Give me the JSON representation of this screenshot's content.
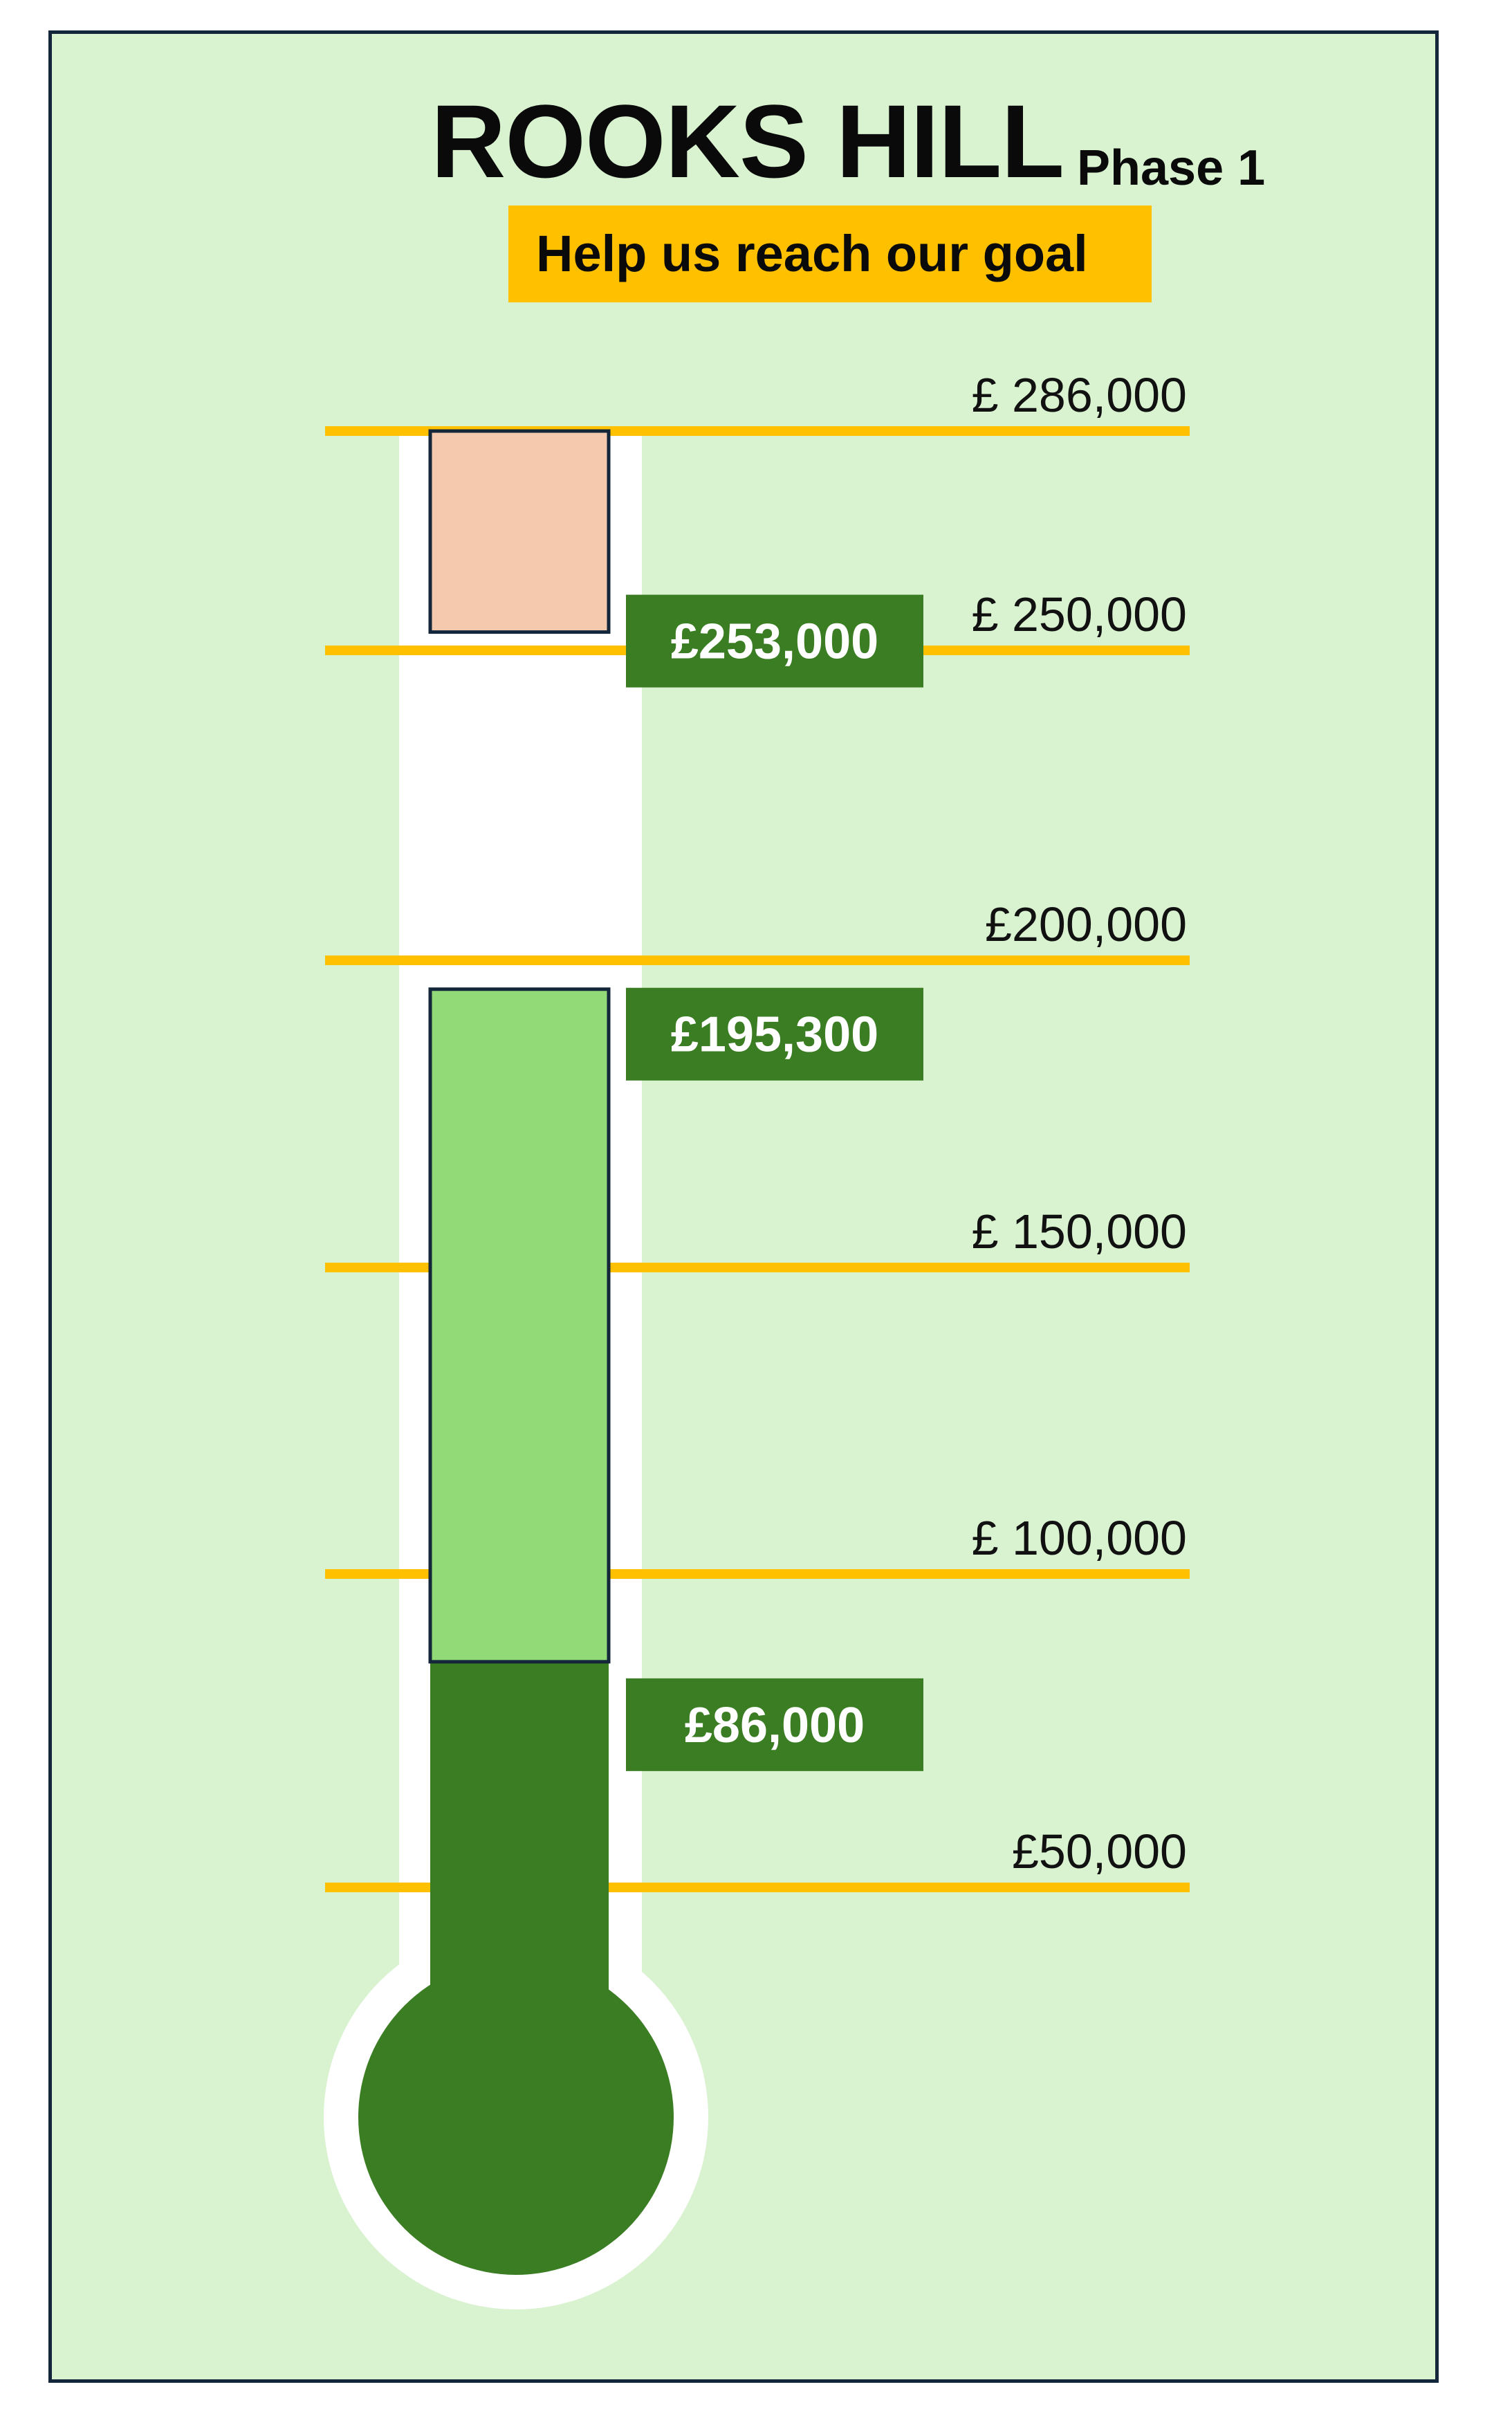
{
  "header": {
    "title": "ROOKS HILL",
    "subtitle": "Phase 1",
    "tagline": "Help us reach our goal"
  },
  "chart_data": {
    "type": "bar",
    "title": "ROOKS HILL",
    "subtitle": "Phase 1",
    "orientation": "vertical",
    "ticks": [
      {
        "value": 50000,
        "label": "£50,000"
      },
      {
        "value": 100000,
        "label": "£ 100,000"
      },
      {
        "value": 150000,
        "label": "£ 150,000"
      },
      {
        "value": 200000,
        "label": "£200,000"
      },
      {
        "value": 250000,
        "label": "£ 250,000"
      },
      {
        "value": 286000,
        "label": "£ 286,000"
      }
    ],
    "segments": [
      {
        "from": 0,
        "to": 86000,
        "label": "£86,000",
        "color": "#3b7d23"
      },
      {
        "from": 86000,
        "to": 195300,
        "label": "£195,300",
        "color": "#92d977"
      },
      {
        "from": 253000,
        "to": 286000,
        "label": "£253,000",
        "color": "#f5c9ae"
      }
    ],
    "goal": 286000,
    "colors": {
      "background": "#d9f2d0",
      "tick_line": "#ffc000",
      "tube": "#ffffff",
      "callout": "#3b7d23",
      "outline": "#14263a"
    }
  }
}
